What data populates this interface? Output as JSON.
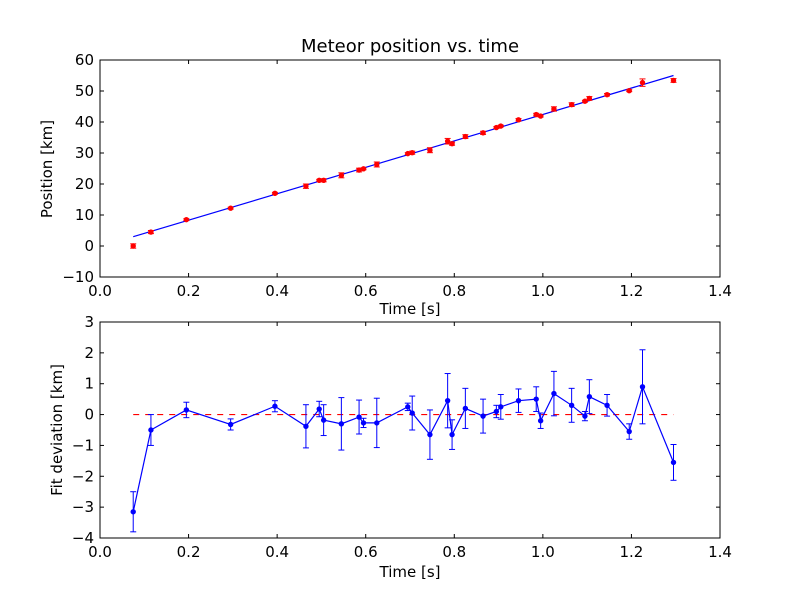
{
  "chart_data": [
    {
      "type": "scatter",
      "title": "Meteor position vs. time",
      "xlabel": "Time [s]",
      "ylabel": "Position [km]",
      "xlim": [
        0.0,
        1.4
      ],
      "ylim": [
        -10,
        60
      ],
      "xticks": [
        "0.0",
        "0.2",
        "0.4",
        "0.6",
        "0.8",
        "1.0",
        "1.2",
        "1.4"
      ],
      "yticks": [
        "−10",
        "0",
        "10",
        "20",
        "30",
        "40",
        "50",
        "60"
      ],
      "grid": false,
      "colors": {
        "points": "#ff0000",
        "fit": "#0000ff"
      },
      "series": [
        {
          "style": "red points with error bars",
          "points": [
            {
              "x": 0.075,
              "y": 0.0,
              "err": 0.7
            },
            {
              "x": 0.115,
              "y": 4.5,
              "err": 0.5
            },
            {
              "x": 0.195,
              "y": 8.5,
              "err": 0.3
            },
            {
              "x": 0.295,
              "y": 12.2,
              "err": 0.3
            },
            {
              "x": 0.395,
              "y": 17.0,
              "err": 0.3
            },
            {
              "x": 0.465,
              "y": 19.3,
              "err": 0.7
            },
            {
              "x": 0.495,
              "y": 21.2,
              "err": 0.3
            },
            {
              "x": 0.505,
              "y": 21.2,
              "err": 0.5
            },
            {
              "x": 0.545,
              "y": 22.8,
              "err": 0.8
            },
            {
              "x": 0.585,
              "y": 24.5,
              "err": 0.6
            },
            {
              "x": 0.595,
              "y": 24.9,
              "err": 0.3
            },
            {
              "x": 0.625,
              "y": 26.3,
              "err": 0.8
            },
            {
              "x": 0.695,
              "y": 29.8,
              "err": 0.3
            },
            {
              "x": 0.705,
              "y": 30.1,
              "err": 0.5
            },
            {
              "x": 0.745,
              "y": 30.9,
              "err": 0.8
            },
            {
              "x": 0.785,
              "y": 33.8,
              "err": 0.9
            },
            {
              "x": 0.795,
              "y": 33.0,
              "err": 0.5
            },
            {
              "x": 0.825,
              "y": 35.3,
              "err": 0.6
            },
            {
              "x": 0.865,
              "y": 36.5,
              "err": 0.5
            },
            {
              "x": 0.895,
              "y": 38.2,
              "err": 0.3
            },
            {
              "x": 0.905,
              "y": 38.7,
              "err": 0.3
            },
            {
              "x": 0.945,
              "y": 40.7,
              "err": 0.4
            },
            {
              "x": 0.985,
              "y": 42.4,
              "err": 0.4
            },
            {
              "x": 0.995,
              "y": 41.9,
              "err": 0.3
            },
            {
              "x": 1.025,
              "y": 44.2,
              "err": 0.7
            },
            {
              "x": 1.065,
              "y": 45.6,
              "err": 0.6
            },
            {
              "x": 1.095,
              "y": 46.7,
              "err": 0.3
            },
            {
              "x": 1.105,
              "y": 47.6,
              "err": 0.6
            },
            {
              "x": 1.145,
              "y": 48.8,
              "err": 0.4
            },
            {
              "x": 1.195,
              "y": 50.1,
              "err": 0.3
            },
            {
              "x": 1.225,
              "y": 52.7,
              "err": 1.2
            },
            {
              "x": 1.295,
              "y": 53.4,
              "err": 0.6
            }
          ]
        },
        {
          "style": "blue fit line",
          "points": [
            {
              "x": 0.075,
              "y": 3.0
            },
            {
              "x": 1.295,
              "y": 55.0
            }
          ]
        }
      ]
    },
    {
      "type": "line",
      "title": "",
      "xlabel": "Time [s]",
      "ylabel": "Fit deviation [km]",
      "xlim": [
        0.0,
        1.4
      ],
      "ylim": [
        -4,
        3
      ],
      "xticks": [
        "0.0",
        "0.2",
        "0.4",
        "0.6",
        "0.8",
        "1.0",
        "1.2",
        "1.4"
      ],
      "yticks": [
        "−4",
        "−3",
        "−2",
        "−1",
        "0",
        "1",
        "2",
        "3"
      ],
      "grid": false,
      "colors": {
        "line": "#0000ff",
        "zero_line": "#ff0000"
      },
      "reference_line": {
        "y": 0,
        "x_from": 0.075,
        "x_to": 1.295,
        "style": "dashed"
      },
      "series": [
        {
          "style": "blue line with error bars",
          "points": [
            {
              "x": 0.075,
              "y": -3.15,
              "err": 0.65
            },
            {
              "x": 0.115,
              "y": -0.5,
              "err": 0.5
            },
            {
              "x": 0.195,
              "y": 0.15,
              "err": 0.25
            },
            {
              "x": 0.295,
              "y": -0.32,
              "err": 0.18
            },
            {
              "x": 0.395,
              "y": 0.27,
              "err": 0.18
            },
            {
              "x": 0.465,
              "y": -0.38,
              "err": 0.7
            },
            {
              "x": 0.495,
              "y": 0.18,
              "err": 0.25
            },
            {
              "x": 0.505,
              "y": -0.18,
              "err": 0.5
            },
            {
              "x": 0.545,
              "y": -0.3,
              "err": 0.85
            },
            {
              "x": 0.585,
              "y": -0.08,
              "err": 0.55
            },
            {
              "x": 0.595,
              "y": -0.27,
              "err": 0.15
            },
            {
              "x": 0.625,
              "y": -0.27,
              "err": 0.8
            },
            {
              "x": 0.695,
              "y": 0.25,
              "err": 0.12
            },
            {
              "x": 0.705,
              "y": 0.05,
              "err": 0.55
            },
            {
              "x": 0.745,
              "y": -0.65,
              "err": 0.8
            },
            {
              "x": 0.785,
              "y": 0.45,
              "err": 0.88
            },
            {
              "x": 0.795,
              "y": -0.65,
              "err": 0.48
            },
            {
              "x": 0.825,
              "y": 0.2,
              "err": 0.65
            },
            {
              "x": 0.865,
              "y": -0.05,
              "err": 0.55
            },
            {
              "x": 0.895,
              "y": 0.1,
              "err": 0.2
            },
            {
              "x": 0.905,
              "y": 0.25,
              "err": 0.4
            },
            {
              "x": 0.945,
              "y": 0.45,
              "err": 0.38
            },
            {
              "x": 0.985,
              "y": 0.5,
              "err": 0.4
            },
            {
              "x": 0.995,
              "y": -0.2,
              "err": 0.25
            },
            {
              "x": 1.025,
              "y": 0.68,
              "err": 0.72
            },
            {
              "x": 1.065,
              "y": 0.3,
              "err": 0.55
            },
            {
              "x": 1.095,
              "y": -0.05,
              "err": 0.15
            },
            {
              "x": 1.105,
              "y": 0.58,
              "err": 0.55
            },
            {
              "x": 1.145,
              "y": 0.3,
              "err": 0.35
            },
            {
              "x": 1.195,
              "y": -0.55,
              "err": 0.25
            },
            {
              "x": 1.225,
              "y": 0.9,
              "err": 1.2
            },
            {
              "x": 1.295,
              "y": -1.55,
              "err": 0.58
            }
          ]
        }
      ]
    }
  ]
}
